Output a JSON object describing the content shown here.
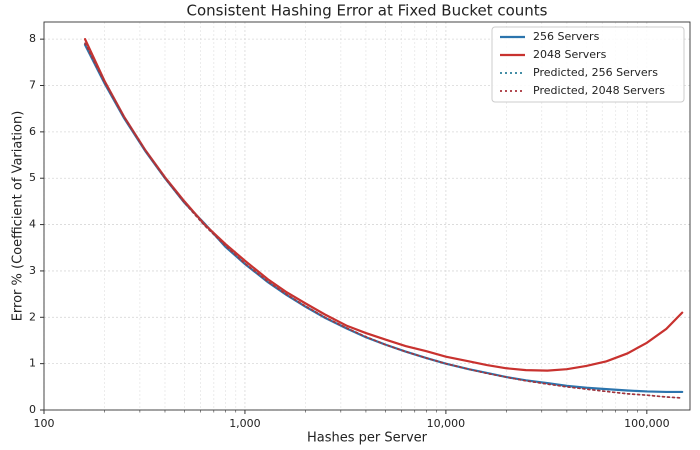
{
  "chart_data": {
    "type": "line",
    "title": "Consistent Hashing Error at Fixed Bucket counts",
    "x_label": "Hashes per Server",
    "y_label": "Error % (Coefficient of Variation)",
    "x_scale": "log",
    "xlim": [
      100,
      164000
    ],
    "ylim": [
      0,
      8.37
    ],
    "xticks": [
      100,
      {
        "value": 1000,
        "label": "1,000"
      },
      {
        "value": 10000,
        "label": "10,000"
      },
      {
        "value": 100000,
        "label": "100,000"
      }
    ],
    "xminorticks": [
      200,
      300,
      400,
      500,
      600,
      700,
      800,
      900,
      2000,
      3000,
      4000,
      5000,
      6000,
      7000,
      8000,
      9000,
      20000,
      30000,
      40000,
      50000,
      60000,
      70000,
      80000,
      90000
    ],
    "yticks": [
      0,
      1,
      2,
      3,
      4,
      5,
      6,
      7,
      8
    ],
    "grid": true,
    "legend": "upper-right",
    "x": [
      160,
      200,
      250,
      320,
      400,
      500,
      630,
      800,
      1000,
      1300,
      1600,
      2000,
      2500,
      3200,
      4000,
      5000,
      6300,
      8000,
      10000,
      13000,
      16000,
      20000,
      25000,
      32000,
      40000,
      50000,
      63000,
      80000,
      100000,
      125000,
      150000
    ],
    "series": [
      {
        "name": "256 Servers",
        "color": "#2b74ad",
        "style": "solid",
        "values": [
          7.88,
          7.05,
          6.3,
          5.58,
          5.0,
          4.47,
          4.02,
          3.52,
          3.15,
          2.76,
          2.49,
          2.23,
          1.99,
          1.76,
          1.57,
          1.41,
          1.26,
          1.12,
          1.0,
          0.88,
          0.8,
          0.71,
          0.64,
          0.58,
          0.52,
          0.48,
          0.45,
          0.42,
          0.4,
          0.39,
          0.39
        ]
      },
      {
        "name": "2048 Servers",
        "color": "#c8322f",
        "style": "solid",
        "values": [
          8.0,
          7.1,
          6.33,
          5.6,
          5.02,
          4.5,
          4.0,
          3.58,
          3.22,
          2.82,
          2.55,
          2.3,
          2.06,
          1.82,
          1.66,
          1.52,
          1.38,
          1.27,
          1.15,
          1.05,
          0.97,
          0.9,
          0.86,
          0.85,
          0.88,
          0.95,
          1.05,
          1.22,
          1.45,
          1.75,
          2.1
        ]
      },
      {
        "name": "Predicted, 256 Servers",
        "color": "#2a7e9a",
        "style": "dotted",
        "values": [
          7.91,
          7.07,
          6.32,
          5.59,
          5.0,
          4.47,
          3.98,
          3.54,
          3.16,
          2.77,
          2.5,
          2.24,
          2.0,
          1.77,
          1.58,
          1.41,
          1.26,
          1.12,
          1.0,
          0.88,
          0.79,
          0.71,
          0.63,
          0.56,
          0.5,
          0.45,
          0.4,
          0.35,
          0.32,
          0.28,
          0.26
        ]
      },
      {
        "name": "Predicted, 2048 Servers",
        "color": "#a8323a",
        "style": "dotted",
        "values": [
          7.91,
          7.07,
          6.32,
          5.59,
          5.0,
          4.47,
          3.98,
          3.54,
          3.16,
          2.77,
          2.5,
          2.24,
          2.0,
          1.77,
          1.58,
          1.41,
          1.26,
          1.12,
          1.0,
          0.88,
          0.79,
          0.71,
          0.63,
          0.56,
          0.5,
          0.45,
          0.4,
          0.35,
          0.32,
          0.28,
          0.26
        ]
      }
    ]
  }
}
